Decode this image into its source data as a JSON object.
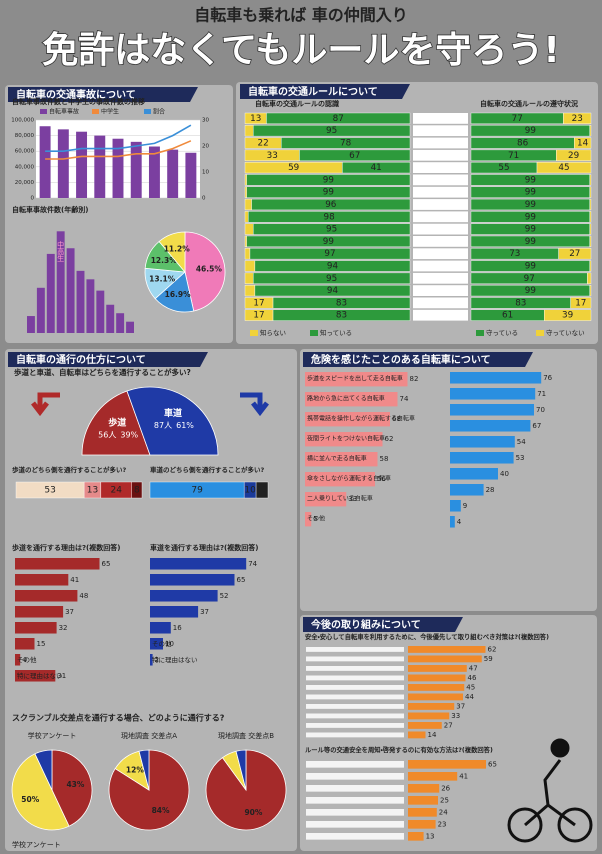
{
  "header": {
    "subtitle": "自転車も乗れば 車の仲間入り",
    "title": "免許はなくてもルールを守ろう!"
  },
  "accidents": {
    "title": "自転車の交通事故について",
    "trend": {
      "type": "bar",
      "title": "自転車事故件数と中学生の事故件数の推移",
      "series": [
        {
          "name": "自転車事故",
          "color": "#7b3fa0",
          "values": [
            92000,
            88000,
            85000,
            80000,
            76000,
            72000,
            66000,
            62000,
            58000
          ]
        },
        {
          "name": "中学生",
          "color": "#f08a3c",
          "axis": "y2",
          "values": [
            15,
            15,
            16,
            16,
            16,
            17,
            17,
            19,
            22
          ]
        },
        {
          "name": "割合",
          "color": "#3a8fd8",
          "axis": "y2",
          "values": [
            18,
            18,
            19,
            19,
            19,
            20,
            21,
            24,
            28
          ]
        }
      ],
      "ylim": [
        0,
        100000
      ],
      "yticks": [
        0,
        {
          "value": 20000,
          "label": "20,000"
        },
        {
          "value": 40000,
          "label": "40,000"
        },
        {
          "value": 60000,
          "label": "60,000"
        },
        {
          "value": 80000,
          "label": "80,000"
        },
        {
          "value": 100000,
          "label": "100,000"
        }
      ],
      "y2lim": [
        0,
        30
      ],
      "y2ticks": [
        0,
        10,
        20,
        30
      ]
    },
    "ages": {
      "type": "bar",
      "title": "自転車事故件数(年齢別)",
      "color": "#7b3fa0",
      "annotation": "中高生",
      "ylim": [
        0,
        40
      ],
      "values": [
        6,
        16,
        28,
        36,
        30,
        22,
        19,
        15,
        10,
        7,
        4
      ]
    },
    "types": {
      "type": "pie",
      "values": [
        46.5,
        16.9,
        13.1,
        12.3,
        11.2
      ],
      "value_labels": [
        "46.5%",
        "16.9%",
        "13.1%",
        "12.3%",
        "11.2%"
      ],
      "colors": [
        "#f07ab8",
        "#3a8fd8",
        "#9fd8f0",
        "#5cc06a",
        "#f2dc4a"
      ]
    }
  },
  "rules": {
    "title": "自転車の交通ルールについて",
    "known": {
      "type": "stacked_bar",
      "title": "自転車の交通ルールの認識",
      "series": [
        {
          "name": "知らない",
          "color": "#f0d23a"
        },
        {
          "name": "知っている",
          "color": "#2d9a3c"
        }
      ],
      "rows": [
        [
          13,
          87
        ],
        [
          5,
          95
        ],
        [
          22,
          78
        ],
        [
          33,
          67
        ],
        [
          59,
          41
        ],
        [
          1,
          99
        ],
        [
          1,
          99
        ],
        [
          4,
          96
        ],
        [
          2,
          98
        ],
        [
          5,
          95
        ],
        [
          1,
          99
        ],
        [
          3,
          97
        ],
        [
          6,
          94
        ],
        [
          5,
          95
        ],
        [
          6,
          94
        ],
        [
          17,
          83
        ],
        [
          17,
          83
        ]
      ]
    },
    "kept": {
      "type": "stacked_bar",
      "title": "自転車の交通ルールの遵守状況",
      "series": [
        {
          "name": "守っている",
          "color": "#2d9a3c"
        },
        {
          "name": "守っていない",
          "color": "#f0d23a"
        }
      ],
      "rows": [
        [
          77,
          23
        ],
        [
          99,
          1
        ],
        [
          86,
          14
        ],
        [
          71,
          29
        ],
        [
          55,
          45
        ],
        [
          99,
          1
        ],
        [
          99,
          1
        ],
        [
          99,
          1
        ],
        [
          99,
          1
        ],
        [
          99,
          1
        ],
        [
          99,
          1
        ],
        [
          73,
          27
        ],
        [
          99,
          1
        ],
        [
          97,
          3
        ],
        [
          99,
          1
        ],
        [
          83,
          17
        ],
        [
          61,
          39
        ]
      ]
    }
  },
  "passage": {
    "title": "自転車の通行の仕方について",
    "where": {
      "type": "half_pie",
      "question": "歩道と車道、自転車はどちらを通行することが多い?",
      "categories": [
        "歩道",
        "車道"
      ],
      "counts": [
        56,
        87
      ],
      "count_labels": [
        "56人",
        "87人"
      ],
      "values": [
        39,
        61
      ],
      "value_labels": [
        "39%",
        "61%"
      ],
      "colors": [
        "#a52a2a",
        "#1f3aa6"
      ]
    },
    "sidewalk_side": {
      "type": "stacked_bar",
      "question": "歩道のどちら側を通行することが多い?",
      "values": [
        53,
        13,
        24,
        8
      ],
      "colors": [
        "#f2dcc4",
        "#e58a8a",
        "#b02a2a",
        "#6a1010"
      ]
    },
    "road_side": {
      "type": "stacked_bar",
      "question": "車道のどちら側を通行することが多い?",
      "values": [
        79,
        10,
        10
      ],
      "colors": [
        "#2a8fe0",
        "#1a3a9a",
        "#222222"
      ]
    },
    "sidewalk_reasons": {
      "type": "hbar",
      "question": "歩道を通行する理由は?(複数回答)",
      "color": "#a52a2a",
      "labels": [
        null,
        null,
        null,
        null,
        null,
        null,
        "その他",
        "特に理由はない"
      ],
      "values": [
        65,
        41,
        48,
        37,
        32,
        15,
        4,
        31
      ]
    },
    "road_reasons": {
      "type": "hbar",
      "question": "車道を通行する理由は?(複数回答)",
      "color": "#1f3aa6",
      "labels": [
        null,
        null,
        null,
        null,
        null,
        "その他",
        "特に理由はない"
      ],
      "values": [
        74,
        65,
        52,
        37,
        16,
        10,
        2
      ]
    },
    "scramble": {
      "question": "スクランブル交差点を通行する場合、どのように通行する?",
      "colors": [
        "#a52a2a",
        "#f2dc4a",
        "#1f3aa6"
      ],
      "pies": [
        {
          "type": "pie",
          "title": "学校アンケート",
          "values": [
            43,
            50,
            7
          ],
          "value_labels": [
            "43%",
            "50%",
            null
          ]
        },
        {
          "type": "pie",
          "title": "現地調査 交差点A",
          "values": [
            84,
            12,
            4
          ],
          "value_labels": [
            "84%",
            "12%",
            null
          ]
        },
        {
          "type": "pie",
          "title": "現地調査 交差点B",
          "values": [
            90,
            6,
            4
          ],
          "value_labels": [
            "90%",
            null,
            null
          ]
        }
      ]
    },
    "source": "学校アンケート"
  },
  "danger": {
    "title": "危険を感じたことのある自転車について",
    "felt": {
      "type": "hbar",
      "color": "#f08a8a",
      "labels": [
        "歩道をスピードを出して走る自転車",
        "路地から急に出てくる自転車",
        "携帯電話を操作しながら運転する自転車",
        "夜間ライトをつけない自転車",
        "横に並んで走る自転車",
        "傘をさしながら運転する自転車",
        "二人乗りしている自転車",
        "その他"
      ],
      "values": [
        82,
        74,
        68,
        62,
        58,
        56,
        33,
        5
      ]
    },
    "done": {
      "type": "hbar",
      "color": "#2a8fe0",
      "values": [
        76,
        71,
        70,
        67,
        54,
        53,
        40,
        28,
        9,
        4
      ]
    }
  },
  "future": {
    "title": "今後の取り組みについて",
    "measures": {
      "type": "hbar",
      "question": "安全・安心して自転車を利用するために、今後優先して取り組むべき対策は?(複数回答)",
      "color": "#f08a2a",
      "values": [
        62,
        59,
        47,
        46,
        45,
        44,
        37,
        33,
        27,
        14
      ]
    },
    "methods": {
      "type": "hbar",
      "question": "ルール等の交通安全を周知・啓発するのに有効な方法は?(複数回答)",
      "color": "#f08a2a",
      "values": [
        65,
        41,
        26,
        25,
        24,
        23,
        13
      ]
    }
  }
}
